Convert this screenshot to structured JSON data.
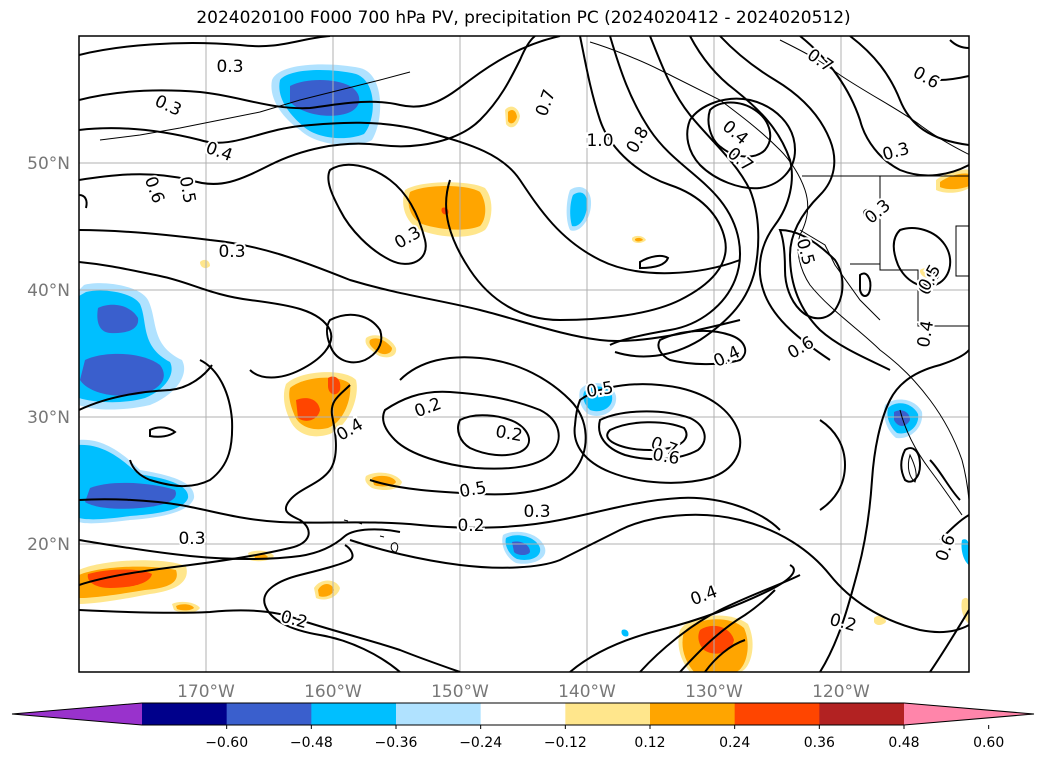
{
  "title": "2024020100 F000 700 hPa PV, precipitation PC (2024020412 - 2024020512)",
  "map": {
    "projection": "PlateCarree",
    "lon_range": [
      -180,
      -110
    ],
    "lat_range": [
      10,
      60
    ],
    "gridlines": true,
    "lon_labels": [
      "170°W",
      "160°W",
      "150°W",
      "140°W",
      "130°W",
      "120°W"
    ],
    "lat_labels": [
      "50°N",
      "40°N",
      "30°N",
      "20°N"
    ],
    "coastlines": true,
    "state_borders": true
  },
  "contour_labels": [
    "0.3",
    "0.3",
    "0.4",
    "0.6",
    "0.5",
    "0.3",
    "0.7",
    "1.0",
    "0.8",
    "0.7",
    "0.6",
    "0.4",
    "0.7",
    "0.3",
    "0.5",
    "0.8",
    "0.3",
    "0.6",
    "0.4",
    "0.3",
    "0.2",
    "0.4",
    "0.5",
    "0.7",
    "0.6",
    "0.5",
    "0.3",
    "0.2",
    "0.3",
    "0.4",
    "0.2",
    "0.2",
    "0.2",
    "0.5",
    "0.4",
    "0.3",
    "0.6"
  ],
  "colorbar": {
    "extend": "both",
    "colors": [
      "#9932CC",
      "#00008B",
      "#3A5FCD",
      "#00BFFF",
      "#B0E2FF",
      "#FFFFFF",
      "#FFE68C",
      "#FFA500",
      "#FF4500",
      "#B22222",
      "#FF85AA"
    ],
    "tick_labels": [
      "−0.60",
      "−0.48",
      "−0.36",
      "−0.24",
      "−0.12",
      "0.12",
      "0.24",
      "0.36",
      "0.48",
      "0.60"
    ]
  }
}
